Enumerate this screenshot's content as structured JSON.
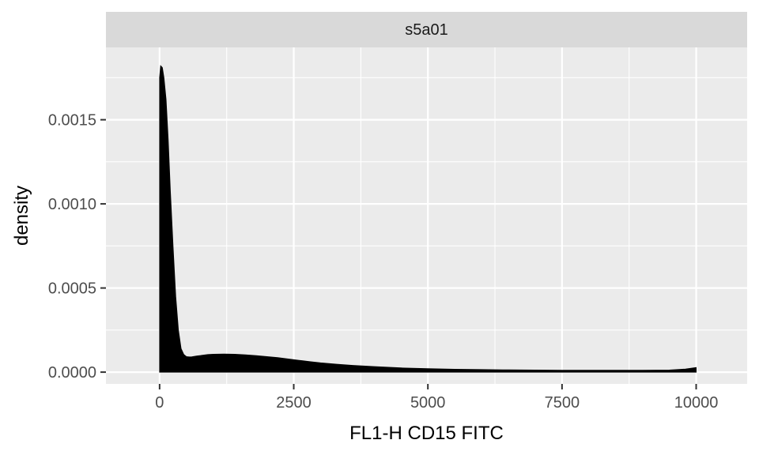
{
  "chart_data": {
    "type": "area",
    "facet_label": "s5a01",
    "xlabel": "FL1-H CD15 FITC",
    "ylabel": "density",
    "xlim": [
      -1000,
      10950
    ],
    "ylim": [
      -7e-05,
      0.00193
    ],
    "x_ticks": [
      0,
      2500,
      5000,
      7500,
      10000
    ],
    "x_tick_labels": [
      "0",
      "2500",
      "5000",
      "7500",
      "10000"
    ],
    "y_ticks": [
      0,
      0.0005,
      0.001,
      0.0015
    ],
    "y_tick_labels": [
      "0.0000",
      "0.0005",
      "0.0010",
      "0.0015"
    ],
    "grid": true,
    "fill_color": "#000000",
    "series": [
      {
        "x": [
          0,
          20,
          50,
          80,
          120,
          160,
          200,
          250,
          300,
          350,
          400,
          450,
          500,
          550,
          600,
          700,
          800,
          900,
          1000,
          1200,
          1400,
          1600,
          1800,
          2000,
          2200,
          2400,
          2600,
          2800,
          3000,
          3300,
          3600,
          4000,
          4500,
          5000,
          5500,
          6000,
          6500,
          7000,
          7500,
          8000,
          8500,
          9000,
          9500,
          9800,
          10000
        ],
        "y": [
          0.00175,
          0.00182,
          0.00181,
          0.00175,
          0.00162,
          0.00138,
          0.00108,
          0.00075,
          0.00045,
          0.00025,
          0.00014,
          0.000105,
          9.2e-05,
          9e-05,
          9.1e-05,
          9.6e-05,
          0.0001,
          0.000104,
          0.000106,
          0.000107,
          0.000106,
          0.000103,
          9.8e-05,
          9.2e-05,
          8.6e-05,
          7.8e-05,
          7e-05,
          6.2e-05,
          5.5e-05,
          4.7e-05,
          4e-05,
          3.3e-05,
          2.5e-05,
          2e-05,
          1.7e-05,
          1.5e-05,
          1.3e-05,
          1.2e-05,
          1.1e-05,
          1.1e-05,
          1.1e-05,
          1.1e-05,
          1.2e-05,
          1.8e-05,
          2.7e-05
        ]
      }
    ]
  }
}
